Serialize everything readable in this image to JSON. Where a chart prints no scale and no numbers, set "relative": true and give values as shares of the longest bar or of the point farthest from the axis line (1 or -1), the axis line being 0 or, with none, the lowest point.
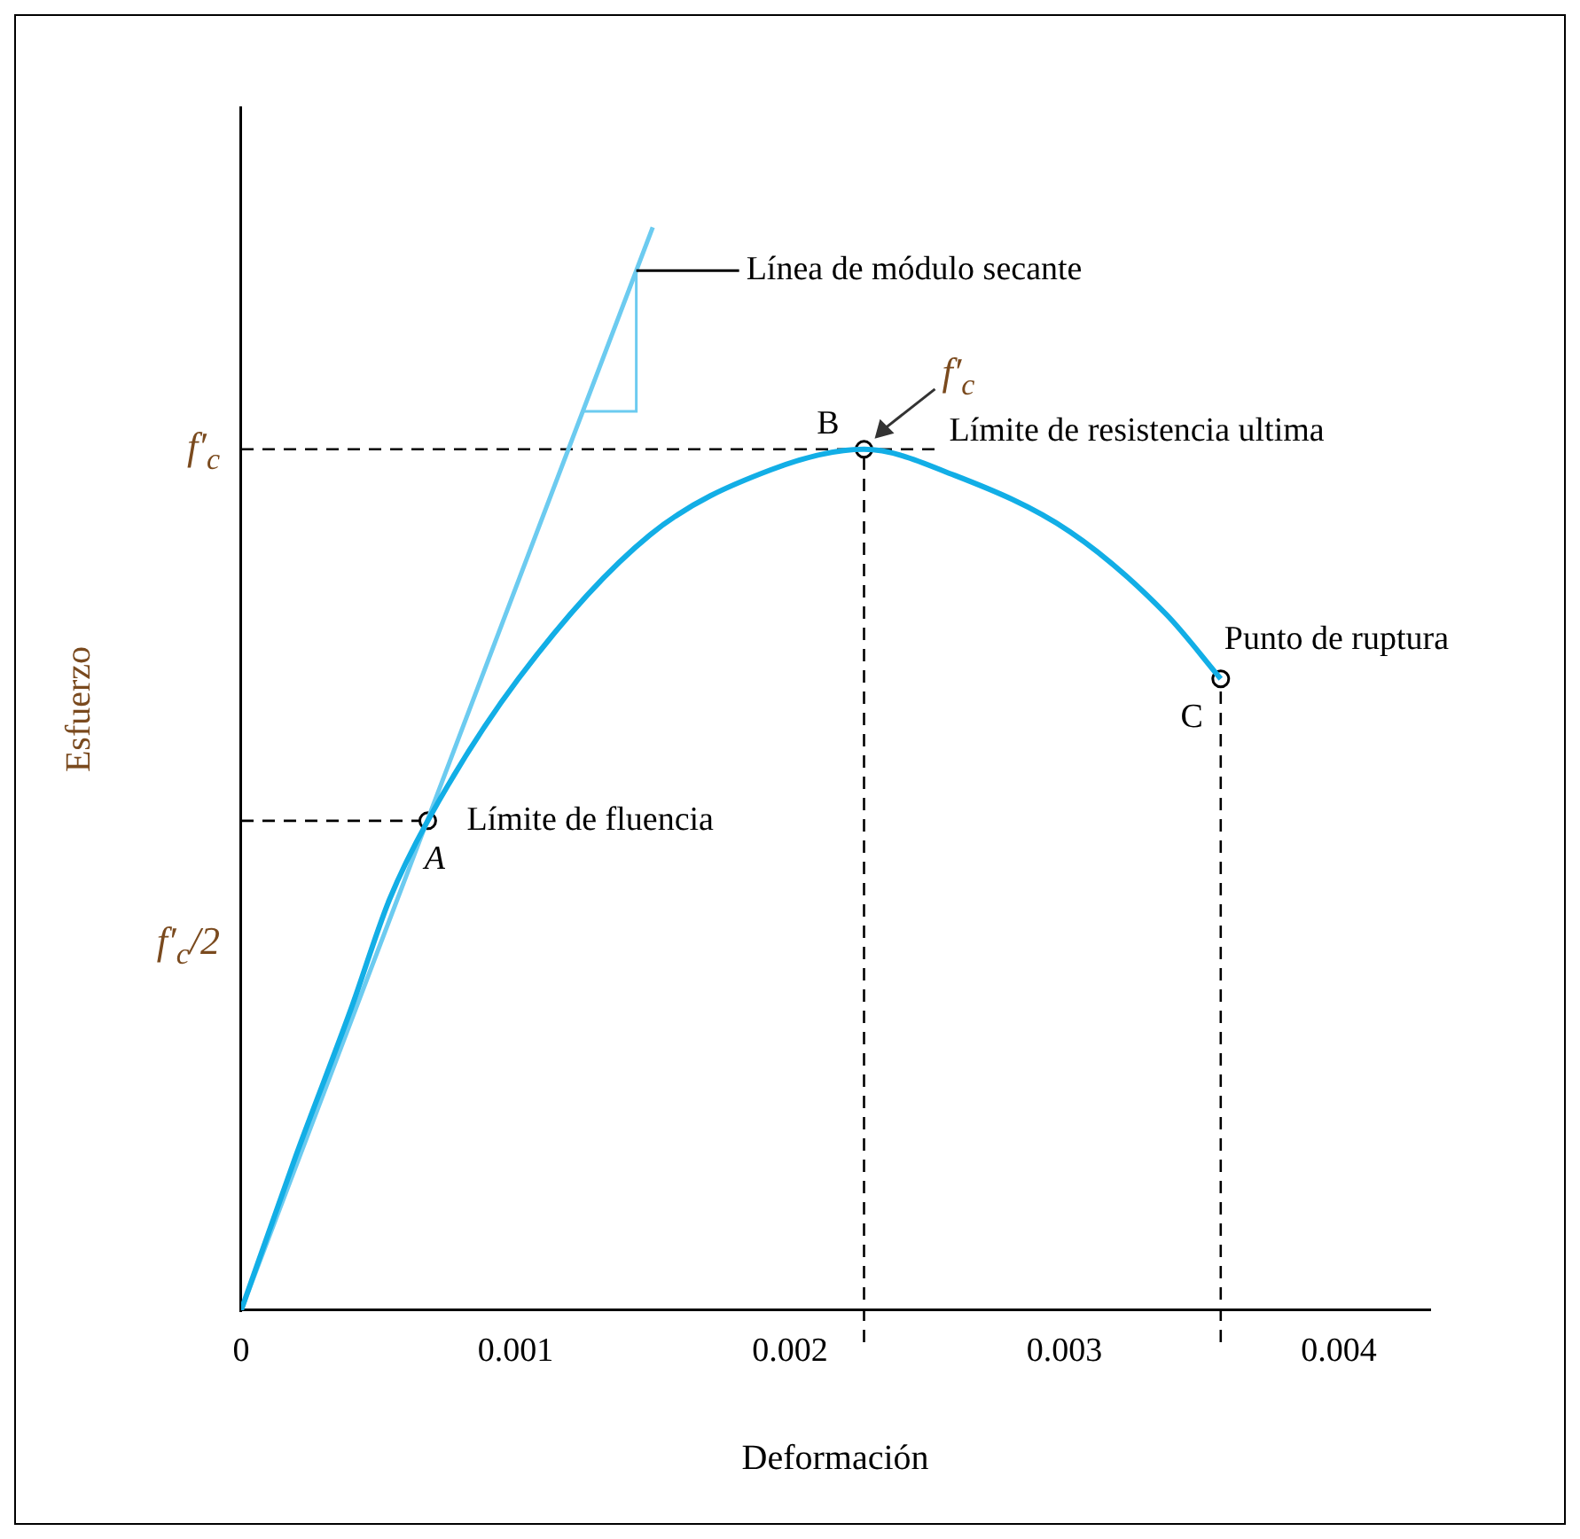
{
  "chart_data": {
    "type": "line",
    "xlabel": "Deformación",
    "ylabel": "Esfuerzo",
    "xlim": [
      0,
      0.00433
    ],
    "relative": true,
    "xticks": [
      0,
      0.001,
      0.002,
      0.003,
      0.004
    ],
    "grid": false,
    "legend": false,
    "series": [
      {
        "color": "#12aee6",
        "marker": "none",
        "line_style": "solid",
        "x": [
          0,
          0.0002,
          0.0004,
          0.00054,
          0.00068,
          0.00101,
          0.00149,
          0.00193,
          0.00227,
          0.0026,
          0.00302,
          0.00337,
          0.00357
        ],
        "values": [
          0,
          0.143,
          0.278,
          0.379,
          0.452,
          0.583,
          0.716,
          0.776,
          0.795,
          0.771,
          0.719,
          0.643,
          0.583
        ]
      },
      {
        "type": "line",
        "color": "#6ccbf0",
        "marker": "none",
        "line_style": "solid",
        "x": [
          0,
          0.0015
        ],
        "values": [
          0,
          1
        ]
      },
      {
        "type": "scatter",
        "color": "#000000",
        "marker": "circle",
        "x": [
          0.00068,
          0.00227,
          0.00357
        ],
        "values": [
          0.452,
          0.795,
          0.583
        ]
      }
    ],
    "ref_lines": [
      {
        "axis": "y",
        "value": 0.795,
        "label": "f′$_{c}$",
        "color": "#000000",
        "line_style": "dashed"
      },
      {
        "axis": "y",
        "value": 0.452,
        "color": "#000000",
        "line_style": "dashed"
      },
      {
        "axis": "x",
        "value": 0.00227,
        "color": "#000000",
        "line_style": "dashed"
      },
      {
        "axis": "x",
        "value": 0.00357,
        "color": "#000000",
        "line_style": "dashed"
      }
    ],
    "annotations": [
      "Línea de módulo secante",
      {
        "text": "B",
        "x": 0.00227,
        "y": 0.795
      },
      {
        "text": "Límite de resistencia ultima",
        "x": 0.00227,
        "y": 0.795
      },
      {
        "text": "f′$_{c}$",
        "x": 0.00227,
        "y": 0.795
      },
      {
        "text": "Punto de ruptura",
        "x": 0.00357,
        "y": 0.583
      },
      {
        "text": "C",
        "x": 0.00357,
        "y": 0.583
      },
      {
        "text": "Límite de fluencia",
        "x": 0.00068,
        "y": 0.452
      },
      {
        "text": "A",
        "x": 0.00068,
        "y": 0.452
      },
      "f′$_{c}$/2"
    ]
  }
}
